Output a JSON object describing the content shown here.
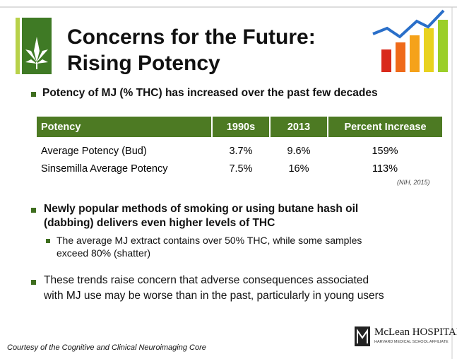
{
  "header": {
    "title_line1": "Concerns for the Future:",
    "title_line2": "Rising Potency"
  },
  "bullets": [
    {
      "text": "Potency of MJ (% THC) has increased over the past few decades"
    },
    {
      "text_line1": "Newly popular methods of smoking or using butane hash oil",
      "text_line2": "(dabbing) delivers even higher levels of THC",
      "sub": {
        "text_line1": "The average MJ extract contains over 50% THC, while some samples",
        "text_line2": "exceed 80% (shatter)"
      }
    },
    {
      "text_line1": "These trends raise concern that adverse consequences associated",
      "text_line2": "with MJ use may be worse than in the past, particularly in young users"
    }
  ],
  "table": {
    "header": [
      "Potency",
      "1990s",
      "2013",
      "Percent Increase"
    ],
    "rows": [
      [
        "Average Potency (Bud)",
        "3.7%",
        "9.6%",
        "159%"
      ],
      [
        "Sinsemilla Average Potency",
        "7.5%",
        "16%",
        "113%"
      ]
    ],
    "source": "(NIH, 2015)"
  },
  "footer": {
    "credit": "Courtesy of the Cognitive and Clinical Neuroimaging Core",
    "logo_name": "McLean HOSPITAL",
    "logo_tagline": "HARVARD MEDICAL SCHOOL AFFILIATE"
  }
}
